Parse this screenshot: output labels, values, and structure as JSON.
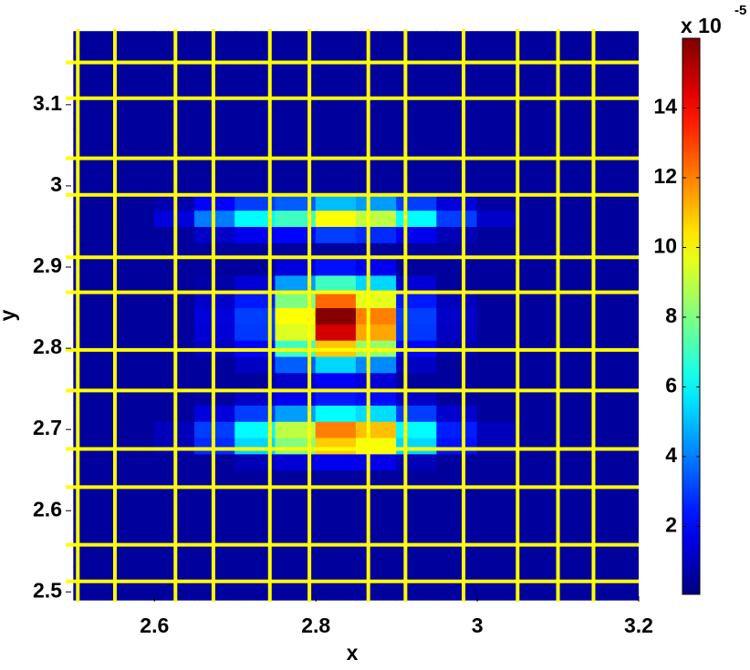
{
  "chart_data": {
    "type": "heatmap",
    "xlabel": "x",
    "ylabel": "y",
    "xlim": [
      2.49,
      3.2
    ],
    "ylim": [
      2.488,
      3.193
    ],
    "xticks": [
      2.6,
      2.8,
      3,
      3.2
    ],
    "yticks": [
      2.5,
      2.6,
      2.7,
      2.8,
      2.9,
      3,
      3.1
    ],
    "x": [
      2.525,
      2.575,
      2.625,
      2.675,
      2.725,
      2.775,
      2.825,
      2.875,
      2.925,
      2.975,
      3.025,
      3.075,
      3.125,
      3.175
    ],
    "y": [
      2.5,
      2.52,
      2.54,
      2.56,
      2.58,
      2.6,
      2.62,
      2.64,
      2.66,
      2.68,
      2.7,
      2.72,
      2.74,
      2.76,
      2.78,
      2.8,
      2.82,
      2.84,
      2.86,
      2.88,
      2.9,
      2.92,
      2.94,
      2.96,
      2.98,
      3,
      3.02,
      3.04,
      3.06,
      3.08,
      3.1,
      3.12,
      3.14,
      3.16,
      3.18
    ],
    "z": [
      [
        0.5,
        0.5,
        0.5,
        0.5,
        0.5,
        0.5,
        0.5,
        0.5,
        0.5,
        0.5,
        0.5,
        0.5,
        0.5,
        0.5
      ],
      [
        0.5,
        0.5,
        0.5,
        0.5,
        0.5,
        0.5,
        0.5,
        0.5,
        0.5,
        0.5,
        0.5,
        0.5,
        0.5,
        0.5
      ],
      [
        0.5,
        0.5,
        0.5,
        0.5,
        0.5,
        0.5,
        0.5,
        0.5,
        0.5,
        0.5,
        0.5,
        0.5,
        0.5,
        0.5
      ],
      [
        0.5,
        0.5,
        0.5,
        0.5,
        0.5,
        0.5,
        0.5,
        0.5,
        0.5,
        0.5,
        0.5,
        0.5,
        0.5,
        0.5
      ],
      [
        0.5,
        0.5,
        0.5,
        0.5,
        0.5,
        0.5,
        0.5,
        0.5,
        0.5,
        0.5,
        0.5,
        0.5,
        0.5,
        0.5
      ],
      [
        0.5,
        0.5,
        0.5,
        0.5,
        0.5,
        0.5,
        0.5,
        0.5,
        0.5,
        0.5,
        0.5,
        0.5,
        0.5,
        0.5
      ],
      [
        0.5,
        0.5,
        0.5,
        0.5,
        0.5,
        0.5,
        0.5,
        0.5,
        0.5,
        0.5,
        0.5,
        0.5,
        0.5,
        0.5
      ],
      [
        0.5,
        0.5,
        0.5,
        0.5,
        0.5,
        0.5,
        0.5,
        0.5,
        0.5,
        0.5,
        0.5,
        0.5,
        0.5,
        0.5
      ],
      [
        0.5,
        0.5,
        0.5,
        0.5,
        0.9,
        1.4,
        1.8,
        1.7,
        0.9,
        0.5,
        0.5,
        0.5,
        0.5,
        0.5
      ],
      [
        0.5,
        0.5,
        0.9,
        2.7,
        5.4,
        8.1,
        10.8,
        9.9,
        5.4,
        2.3,
        0.9,
        0.5,
        0.5,
        0.5
      ],
      [
        0.5,
        0.5,
        1,
        3,
        6,
        9,
        12,
        11,
        6,
        2.5,
        1,
        0.5,
        0.5,
        0.5
      ],
      [
        0.5,
        0.5,
        0.5,
        1.5,
        3,
        4.5,
        6,
        5.5,
        3,
        1.3,
        0.5,
        0.5,
        0.5,
        0.5
      ],
      [
        0.5,
        0.5,
        0.5,
        0.6,
        1.2,
        1.8,
        2.4,
        2.2,
        1.2,
        0.5,
        0.5,
        0.5,
        0.5,
        0.5
      ],
      [
        0.5,
        0.5,
        0.5,
        0.5,
        0.5,
        1.2,
        1.9,
        1.4,
        0.5,
        0.5,
        0.5,
        0.5,
        0.5,
        0.5
      ],
      [
        0.5,
        0.5,
        0.5,
        0.5,
        1.1,
        3.5,
        5.4,
        4.2,
        1.1,
        0.5,
        0.5,
        0.5,
        0.5,
        0.5
      ],
      [
        0.5,
        0.5,
        0.5,
        1.1,
        2.1,
        7,
        10.9,
        8.4,
        2.1,
        0.8,
        0.5,
        0.5,
        0.5,
        0.5
      ],
      [
        0.5,
        0.5,
        0.5,
        1.4,
        2.9,
        9.5,
        14.7,
        11.4,
        2.9,
        1.1,
        0.5,
        0.5,
        0.5,
        0.5
      ],
      [
        0.5,
        0.5,
        0.5,
        1.5,
        3,
        10,
        15.9,
        12,
        3,
        1.2,
        0.5,
        0.5,
        0.5,
        0.5
      ],
      [
        0.5,
        0.5,
        0.5,
        1.2,
        2.4,
        8,
        12.4,
        9.6,
        2.4,
        1,
        0.5,
        0.5,
        0.5,
        0.5
      ],
      [
        0.5,
        0.5,
        0.5,
        0.7,
        1.4,
        4.5,
        7,
        5.4,
        1.4,
        0.5,
        0.5,
        0.5,
        0.5,
        0.5
      ],
      [
        0.5,
        0.5,
        0.5,
        0.5,
        0.5,
        1.5,
        2.3,
        1.8,
        0.5,
        0.5,
        0.5,
        0.5,
        0.5,
        0.5
      ],
      [
        0.5,
        0.5,
        0.5,
        0.5,
        0.5,
        0.5,
        0.5,
        0.5,
        0.5,
        0.5,
        0.5,
        0.5,
        0.5,
        0.5
      ],
      [
        0.5,
        0.5,
        0.5,
        1.2,
        1.8,
        2.1,
        3,
        2.7,
        1.8,
        0.9,
        0.5,
        0.5,
        0.5,
        0.5
      ],
      [
        0.5,
        0.5,
        1.5,
        4,
        6,
        7,
        10,
        9,
        6,
        3,
        1.2,
        0.5,
        0.5,
        0.5
      ],
      [
        0.5,
        0.5,
        0.8,
        2,
        3,
        3.5,
        5,
        4.5,
        3,
        1.5,
        0.6,
        0.5,
        0.5,
        0.5
      ],
      [
        0.5,
        0.5,
        0.5,
        0.5,
        0.5,
        0.5,
        0.5,
        0.5,
        0.5,
        0.5,
        0.5,
        0.5,
        0.5,
        0.5
      ],
      [
        0.5,
        0.5,
        0.5,
        0.5,
        0.5,
        0.5,
        0.5,
        0.5,
        0.5,
        0.5,
        0.5,
        0.5,
        0.5,
        0.5
      ],
      [
        0.5,
        0.5,
        0.5,
        0.5,
        0.5,
        0.5,
        0.5,
        0.5,
        0.5,
        0.5,
        0.5,
        0.5,
        0.5,
        0.5
      ],
      [
        0.5,
        0.5,
        0.5,
        0.5,
        0.5,
        0.5,
        0.5,
        0.5,
        0.5,
        0.5,
        0.5,
        0.5,
        0.5,
        0.5
      ],
      [
        0.5,
        0.5,
        0.5,
        0.5,
        0.5,
        0.5,
        0.5,
        0.5,
        0.5,
        0.5,
        0.5,
        0.5,
        0.5,
        0.5
      ],
      [
        0.5,
        0.5,
        0.5,
        0.5,
        0.5,
        0.5,
        0.5,
        0.5,
        0.5,
        0.5,
        0.5,
        0.5,
        0.5,
        0.5
      ],
      [
        0.5,
        0.5,
        0.5,
        0.5,
        0.5,
        0.5,
        0.5,
        0.5,
        0.5,
        0.5,
        0.5,
        0.5,
        0.5,
        0.5
      ],
      [
        0.5,
        0.5,
        0.5,
        0.5,
        0.5,
        0.5,
        0.5,
        0.5,
        0.5,
        0.5,
        0.5,
        0.5,
        0.5,
        0.5
      ],
      [
        0.5,
        0.5,
        0.5,
        0.5,
        0.5,
        0.5,
        0.5,
        0.5,
        0.5,
        0.5,
        0.5,
        0.5,
        0.5,
        0.5
      ],
      [
        0.5,
        0.5,
        0.5,
        0.5,
        0.5,
        0.5,
        0.5,
        0.5,
        0.5,
        0.5,
        0.5,
        0.5,
        0.5,
        0.5
      ]
    ],
    "mesh_lines": {
      "color": "#ffff00",
      "x": [
        2.505,
        2.551,
        2.626,
        2.673,
        2.743,
        2.792,
        2.865,
        2.911,
        2.983,
        3.05,
        3.1,
        3.144
      ],
      "y": [
        2.513,
        2.558,
        2.629,
        2.676,
        2.748,
        2.798,
        2.869,
        2.912,
        2.989,
        3.034,
        3.108,
        3.152
      ]
    },
    "colorbar": {
      "clim": [
        0.05,
        16
      ],
      "ticks": [
        2,
        4,
        6,
        8,
        10,
        12,
        14
      ],
      "multiplier": "x 10",
      "exponent": "-5"
    }
  }
}
